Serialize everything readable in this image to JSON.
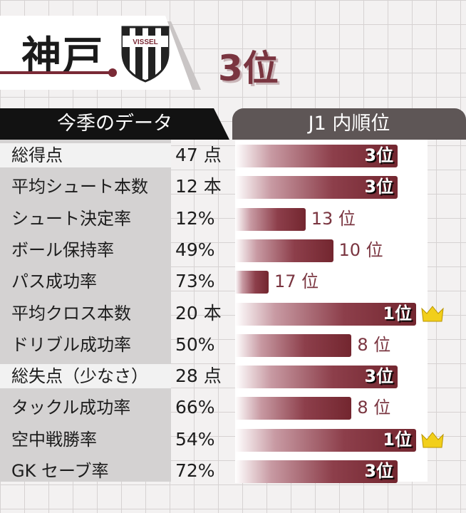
{
  "header": {
    "team": "神戸",
    "logo_text": "VISSEL",
    "overall_rank": "3位"
  },
  "table": {
    "left_header": "今季のデータ",
    "right_header": "J1 内順位"
  },
  "colors": {
    "bar_dark": "#73262f",
    "rank_text": "#7a3540",
    "crown": "#f2cf1b"
  },
  "chart_data": {
    "type": "bar",
    "orientation": "horizontal",
    "categories": [
      "総得点",
      "平均シュート本数",
      "シュート決定率",
      "ボール保持率",
      "パス成功率",
      "平均クロス本数",
      "ドリブル成功率",
      "総失点（少なさ）",
      "タックル成功率",
      "空中戦勝率",
      "GK セーブ率"
    ],
    "highlighted_categories": [
      "総得点",
      "総失点（少なさ）"
    ],
    "stat_values": [
      "47 点",
      "12 本",
      "12%",
      "49%",
      "73%",
      "20 本",
      "50%",
      "28 点",
      "66%",
      "54%",
      "72%"
    ],
    "ranks": [
      3,
      3,
      13,
      10,
      17,
      1,
      8,
      3,
      8,
      1,
      3
    ],
    "rank_labels": [
      "3位",
      "3位",
      "13 位",
      "10 位",
      "17 位",
      "1位",
      "8 位",
      "3位",
      "8 位",
      "1位",
      "3位"
    ],
    "bar_scale_ranks": [
      1,
      18
    ],
    "crown_for_rank": 1
  }
}
